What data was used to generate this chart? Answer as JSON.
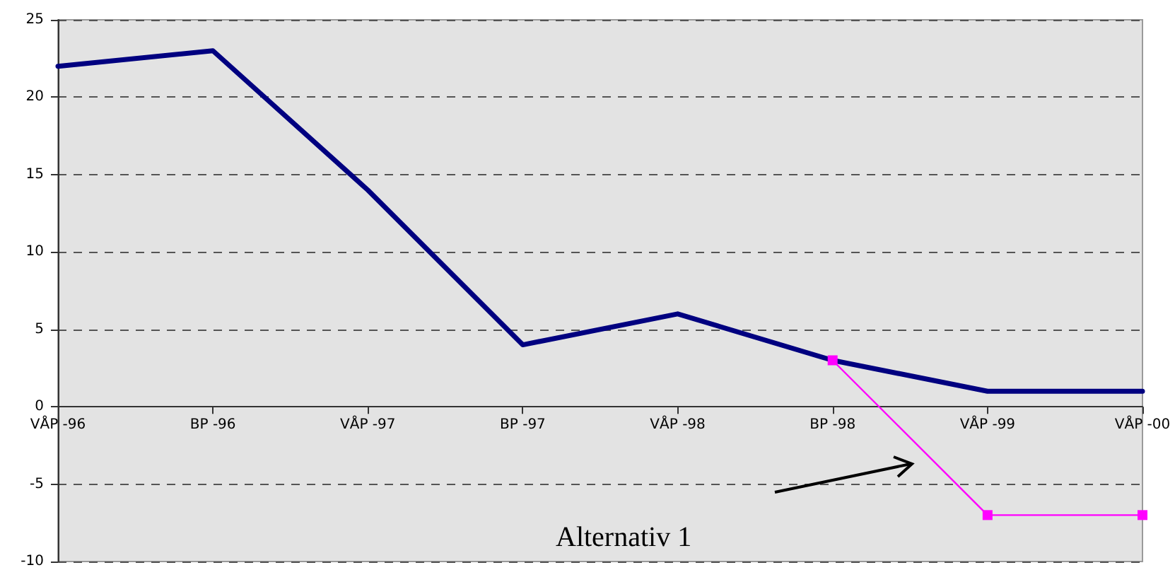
{
  "chart_data": {
    "type": "line",
    "categories": [
      "VÅP -96",
      "BP -96",
      "VÅP -97",
      "BP -97",
      "VÅP -98",
      "BP -98",
      "VÅP -99",
      "VÅP -00"
    ],
    "series": [
      {
        "color": "#000080",
        "marker": "none",
        "values": [
          22,
          23,
          14,
          4,
          6,
          3,
          1,
          1
        ]
      },
      {
        "color": "#ff00ff",
        "marker": "square",
        "values": [
          null,
          null,
          null,
          null,
          null,
          3,
          -7,
          -7
        ]
      }
    ],
    "ylim": [
      -10,
      25
    ],
    "yticks": [
      -10,
      -5,
      0,
      5,
      10,
      15,
      20,
      25
    ],
    "grid": "y",
    "annotations": [
      "Alternativ 1"
    ]
  }
}
